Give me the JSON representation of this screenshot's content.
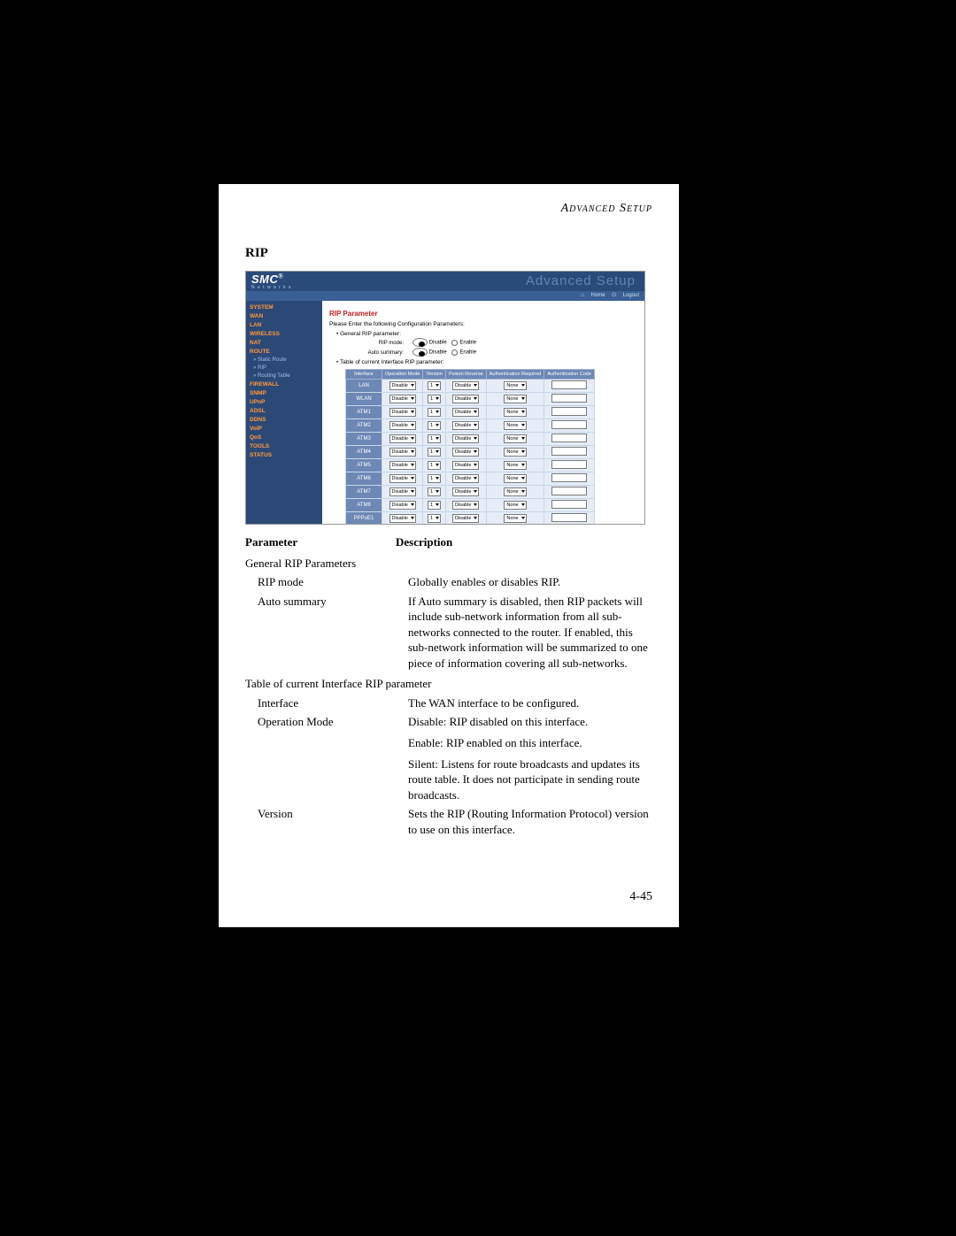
{
  "header": "Advanced Setup",
  "section_title": "RIP",
  "page_number": "4-45",
  "screenshot": {
    "logo": "SMC",
    "logo_sub": "N e t w o r k s",
    "banner": "Advanced Setup",
    "toolbar": {
      "home": "Home",
      "logout": "Logout"
    },
    "sidebar": [
      {
        "t": "SYSTEM",
        "c": "or"
      },
      {
        "t": "WAN",
        "c": "or"
      },
      {
        "t": "LAN",
        "c": "or"
      },
      {
        "t": "WIRELESS",
        "c": "or"
      },
      {
        "t": "NAT",
        "c": "or"
      },
      {
        "t": "ROUTE",
        "c": "or"
      },
      {
        "t": "» Static Route",
        "c": "sub"
      },
      {
        "t": "» RIP",
        "c": "sub"
      },
      {
        "t": "» Routing Table",
        "c": "sub"
      },
      {
        "t": "FIREWALL",
        "c": "or"
      },
      {
        "t": "SNMP",
        "c": "or"
      },
      {
        "t": "UPnP",
        "c": "or"
      },
      {
        "t": "ADSL",
        "c": "or"
      },
      {
        "t": "DDNS",
        "c": "or"
      },
      {
        "t": "VoIP",
        "c": "or"
      },
      {
        "t": "QoS",
        "c": "or"
      },
      {
        "t": "TOOLS",
        "c": "or"
      },
      {
        "t": "STATUS",
        "c": "or"
      }
    ],
    "main": {
      "heading": "RIP Parameter",
      "instruction": "Please Enter the following Configuration Parameters:",
      "bullet1": "General RIP parameter:",
      "row1_label": "RIP mode:",
      "row2_label": "Auto summary:",
      "opt_disable": "Disable",
      "opt_enable": "Enable",
      "bullet2": "Table of current Interface RIP parameter:",
      "cols": [
        "Interface",
        "Operation Mode",
        "Version",
        "Poison Reverse",
        "Authentication Required",
        "Authentication Code"
      ],
      "interfaces": [
        "LAN",
        "WLAN",
        "ATM1",
        "ATM2",
        "ATM3",
        "ATM4",
        "ATM5",
        "ATM6",
        "ATM7",
        "ATM8",
        "PPPoE1",
        "PPPoE2"
      ],
      "op": "Disable",
      "ver": "1",
      "pr": "Disable",
      "auth": "None"
    }
  },
  "table": {
    "hdr_param": "Parameter",
    "hdr_desc": "Description",
    "r1_p": "General RIP Parameters",
    "r2_p": "RIP mode",
    "r2_d": "Globally enables or disables RIP.",
    "r3_p": "Auto summary",
    "r3_d": "If Auto summary is disabled, then RIP packets will include sub-network information from all sub-networks connected to the router. If enabled, this sub-network information will be summarized to one piece of information covering all sub-networks.",
    "r4_p": "Table of current Interface RIP parameter",
    "r5_p": "Interface",
    "r5_d": "The WAN interface to be configured.",
    "r6_p": "Operation Mode",
    "r6_d1": "Disable: RIP disabled on this interface.",
    "r6_d2": "Enable: RIP enabled on this interface.",
    "r6_d3": "Silent: Listens for route broadcasts and updates its route table. It does not participate in sending route broadcasts.",
    "r7_p": "Version",
    "r7_d": "Sets the RIP (Routing Information Protocol) version to use on this interface."
  }
}
